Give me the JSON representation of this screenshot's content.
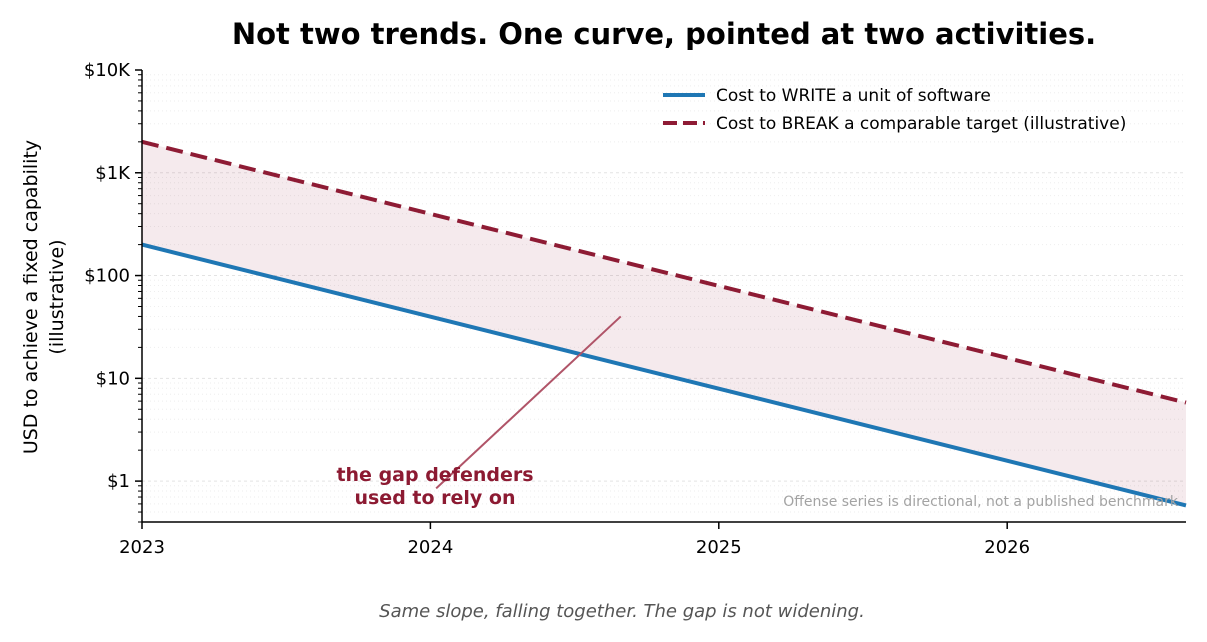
{
  "chart_data": {
    "type": "line",
    "title": "Not two trends. One curve, pointed at two activities.",
    "xlabel": "",
    "ylabel": [
      "USD to achieve a fixed capability",
      "(illustrative)"
    ],
    "x_ticks": [
      "2023",
      "2024",
      "2025",
      "2026"
    ],
    "y_ticks": [
      "$1",
      "$10",
      "$100",
      "$1K",
      "$10K"
    ],
    "y_scale": "log",
    "xlim": [
      2023.0,
      2026.62
    ],
    "ylim": [
      0.4,
      10000
    ],
    "grid": true,
    "legend_position": "top-right",
    "series": [
      {
        "name": "Cost to WRITE a unit of software",
        "color": "#1f77b4",
        "dash": "solid",
        "x": [
          2023.0,
          2026.62
        ],
        "y": [
          200,
          0.58
        ]
      },
      {
        "name": "Cost to BREAK a comparable target (illustrative)",
        "color": "#8e1b34",
        "dash": "dashed",
        "x": [
          2023.0,
          2026.62
        ],
        "y": [
          2000,
          5.8
        ]
      }
    ],
    "shaded_region": {
      "between": [
        "Cost to WRITE a unit of software",
        "Cost to BREAK a comparable target (illustrative)"
      ],
      "color": "#8e1b34"
    },
    "annotation": {
      "lines": [
        "the gap defenders",
        "used to rely on"
      ],
      "arrow_to": [
        2024.66,
        40
      ],
      "text_at": [
        2024.02,
        0.85
      ]
    },
    "note": "Offense series is directional, not a published benchmark",
    "caption": "Same slope, falling together. The gap is not widening."
  }
}
